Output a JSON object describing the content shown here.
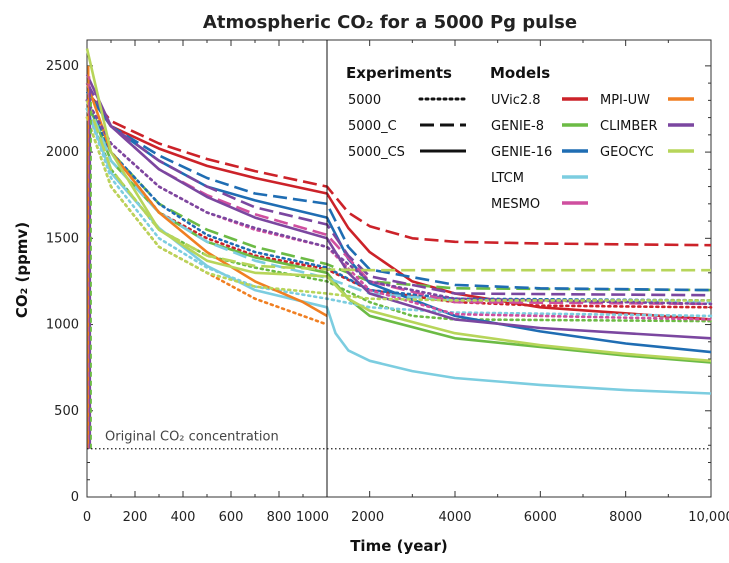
{
  "chart_data": {
    "type": "line",
    "title": "Atmospheric CO₂ for a 5000 Pg pulse",
    "xlabel": "Time (year)",
    "ylabel": "CO₂ (ppmv)",
    "ylim": [
      0,
      2650
    ],
    "x_axis_note": "piecewise linear: 0-1000 years left panel, 1000-10,000 years right panel",
    "x_ticks": [
      {
        "value": 0,
        "label": "0"
      },
      {
        "value": 200,
        "label": "200"
      },
      {
        "value": 400,
        "label": "400"
      },
      {
        "value": 600,
        "label": "600"
      },
      {
        "value": 800,
        "label": "800"
      },
      {
        "value": 1000,
        "label": "1000"
      },
      {
        "value": 2000,
        "label": "2000"
      },
      {
        "value": 4000,
        "label": "4000"
      },
      {
        "value": 6000,
        "label": "6000"
      },
      {
        "value": 8000,
        "label": "8000"
      },
      {
        "value": 10000,
        "label": "10,000"
      }
    ],
    "y_ticks": [
      {
        "value": 0,
        "label": "0"
      },
      {
        "value": 500,
        "label": "500"
      },
      {
        "value": 1000,
        "label": "1000"
      },
      {
        "value": 1500,
        "label": "1500"
      },
      {
        "value": 2000,
        "label": "2000"
      },
      {
        "value": 2500,
        "label": "2500"
      }
    ],
    "baseline": {
      "label": "Original CO₂ concentration",
      "value": 280
    },
    "legend": {
      "experiments_title": "Experiments",
      "models_title": "Models",
      "experiments": [
        {
          "label": "5000",
          "style": "dotted"
        },
        {
          "label": "5000_C",
          "style": "dashed"
        },
        {
          "label": "5000_CS",
          "style": "solid"
        }
      ],
      "models": [
        {
          "label": "UVic2.8",
          "color": "#cc2229"
        },
        {
          "label": "GENIE-8",
          "color": "#6cbb45"
        },
        {
          "label": "GENIE-16",
          "color": "#1f6db3"
        },
        {
          "label": "LTCM",
          "color": "#7ccde0"
        },
        {
          "label": "MESMO",
          "color": "#cf4f9f"
        },
        {
          "label": "MPI-UW",
          "color": "#f07f22"
        },
        {
          "label": "CLIMBER",
          "color": "#7b47a0"
        },
        {
          "label": "GEOCYC",
          "color": "#b7d55a"
        }
      ]
    },
    "series": [
      {
        "name": "UVic2.8",
        "experiment": "5000",
        "color": "#cc2229",
        "style": "dotted",
        "points": [
          [
            0,
            2300
          ],
          [
            100,
            2000
          ],
          [
            300,
            1650
          ],
          [
            500,
            1500
          ],
          [
            700,
            1400
          ],
          [
            1000,
            1320
          ],
          [
            2000,
            1200
          ],
          [
            4000,
            1130
          ],
          [
            6000,
            1110
          ],
          [
            10000,
            1100
          ]
        ]
      },
      {
        "name": "UVic2.8",
        "experiment": "5000_C",
        "color": "#cc2229",
        "style": "dashed",
        "points": [
          [
            0,
            2350
          ],
          [
            100,
            2180
          ],
          [
            300,
            2050
          ],
          [
            500,
            1960
          ],
          [
            700,
            1890
          ],
          [
            1000,
            1800
          ],
          [
            1500,
            1650
          ],
          [
            2000,
            1570
          ],
          [
            3000,
            1500
          ],
          [
            4000,
            1480
          ],
          [
            6000,
            1470
          ],
          [
            10000,
            1460
          ]
        ]
      },
      {
        "name": "UVic2.8",
        "experiment": "5000_CS",
        "color": "#cc2229",
        "style": "solid",
        "points": [
          [
            0,
            2350
          ],
          [
            100,
            2150
          ],
          [
            300,
            2020
          ],
          [
            500,
            1920
          ],
          [
            700,
            1850
          ],
          [
            1000,
            1760
          ],
          [
            1500,
            1560
          ],
          [
            2000,
            1420
          ],
          [
            3000,
            1250
          ],
          [
            4000,
            1180
          ],
          [
            6000,
            1100
          ],
          [
            10000,
            1030
          ]
        ]
      },
      {
        "name": "GENIE-8",
        "experiment": "5000",
        "color": "#6cbb45",
        "style": "dotted",
        "points": [
          [
            0,
            2250
          ],
          [
            100,
            1900
          ],
          [
            300,
            1550
          ],
          [
            500,
            1400
          ],
          [
            700,
            1330
          ],
          [
            1000,
            1250
          ],
          [
            2000,
            1130
          ],
          [
            3000,
            1050
          ],
          [
            4000,
            1030
          ],
          [
            10000,
            1020
          ]
        ]
      },
      {
        "name": "GENIE-8",
        "experiment": "5000_C",
        "color": "#6cbb45",
        "style": "dashed",
        "points": [
          [
            0,
            2300
          ],
          [
            100,
            2000
          ],
          [
            300,
            1700
          ],
          [
            500,
            1550
          ],
          [
            700,
            1450
          ],
          [
            1000,
            1350
          ],
          [
            2000,
            1250
          ],
          [
            4000,
            1210
          ],
          [
            10000,
            1200
          ]
        ]
      },
      {
        "name": "GENIE-8",
        "experiment": "5000_CS",
        "color": "#6cbb45",
        "style": "solid",
        "points": [
          [
            0,
            2300
          ],
          [
            100,
            1950
          ],
          [
            300,
            1650
          ],
          [
            500,
            1480
          ],
          [
            700,
            1390
          ],
          [
            1000,
            1300
          ],
          [
            1500,
            1150
          ],
          [
            2000,
            1050
          ],
          [
            4000,
            920
          ],
          [
            6000,
            870
          ],
          [
            8000,
            820
          ],
          [
            10000,
            780
          ]
        ]
      },
      {
        "name": "GENIE-16",
        "experiment": "5000",
        "color": "#1f6db3",
        "style": "dotted",
        "points": [
          [
            0,
            2300
          ],
          [
            100,
            2000
          ],
          [
            300,
            1700
          ],
          [
            500,
            1520
          ],
          [
            700,
            1420
          ],
          [
            1000,
            1330
          ],
          [
            2000,
            1200
          ],
          [
            4000,
            1150
          ],
          [
            10000,
            1140
          ]
        ]
      },
      {
        "name": "GENIE-16",
        "experiment": "5000_C",
        "color": "#1f6db3",
        "style": "dashed",
        "points": [
          [
            0,
            2350
          ],
          [
            100,
            2150
          ],
          [
            300,
            1980
          ],
          [
            500,
            1850
          ],
          [
            700,
            1760
          ],
          [
            1000,
            1700
          ],
          [
            1500,
            1450
          ],
          [
            2000,
            1320
          ],
          [
            4000,
            1230
          ],
          [
            6000,
            1210
          ],
          [
            10000,
            1200
          ]
        ]
      },
      {
        "name": "GENIE-16",
        "experiment": "5000_CS",
        "color": "#1f6db3",
        "style": "solid",
        "points": [
          [
            0,
            2350
          ],
          [
            100,
            2150
          ],
          [
            300,
            1950
          ],
          [
            500,
            1800
          ],
          [
            700,
            1720
          ],
          [
            1000,
            1620
          ],
          [
            1500,
            1380
          ],
          [
            2000,
            1240
          ],
          [
            4000,
            1050
          ],
          [
            6000,
            960
          ],
          [
            8000,
            890
          ],
          [
            10000,
            840
          ]
        ]
      },
      {
        "name": "LTCM",
        "experiment": "5000",
        "color": "#7ccde0",
        "style": "dotted",
        "points": [
          [
            0,
            2250
          ],
          [
            100,
            1850
          ],
          [
            300,
            1500
          ],
          [
            500,
            1330
          ],
          [
            700,
            1220
          ],
          [
            1000,
            1150
          ],
          [
            2000,
            1100
          ],
          [
            4000,
            1070
          ],
          [
            10000,
            1050
          ]
        ]
      },
      {
        "name": "LTCM",
        "experiment": "5000_C",
        "color": "#7ccde0",
        "style": "dashed",
        "points": [
          [
            0,
            2300
          ],
          [
            100,
            1950
          ],
          [
            300,
            1650
          ],
          [
            500,
            1480
          ],
          [
            700,
            1370
          ],
          [
            1000,
            1270
          ],
          [
            2000,
            1180
          ],
          [
            4000,
            1140
          ],
          [
            10000,
            1130
          ]
        ]
      },
      {
        "name": "LTCM",
        "experiment": "5000_CS",
        "color": "#7ccde0",
        "style": "solid",
        "points": [
          [
            0,
            2250
          ],
          [
            100,
            1880
          ],
          [
            300,
            1560
          ],
          [
            500,
            1340
          ],
          [
            700,
            1200
          ],
          [
            1000,
            1100
          ],
          [
            1200,
            950
          ],
          [
            1500,
            850
          ],
          [
            2000,
            790
          ],
          [
            3000,
            730
          ],
          [
            4000,
            690
          ],
          [
            6000,
            650
          ],
          [
            8000,
            620
          ],
          [
            10000,
            600
          ]
        ]
      },
      {
        "name": "MESMO",
        "experiment": "5000",
        "color": "#cf4f9f",
        "style": "dotted",
        "points": [
          [
            0,
            2300
          ],
          [
            100,
            2050
          ],
          [
            300,
            1800
          ],
          [
            500,
            1650
          ],
          [
            700,
            1550
          ],
          [
            1000,
            1450
          ],
          [
            2000,
            1200
          ],
          [
            4000,
            1060
          ],
          [
            10000,
            1030
          ]
        ]
      },
      {
        "name": "MESMO",
        "experiment": "5000_C",
        "color": "#cf4f9f",
        "style": "dashed",
        "points": [
          [
            0,
            2400
          ],
          [
            100,
            2150
          ],
          [
            300,
            1900
          ],
          [
            500,
            1750
          ],
          [
            700,
            1640
          ],
          [
            1000,
            1520
          ],
          [
            2000,
            1250
          ],
          [
            4000,
            1130
          ],
          [
            10000,
            1120
          ]
        ]
      },
      {
        "name": "MPI-UW",
        "experiment": "5000",
        "color": "#f07f22",
        "style": "dotted",
        "points": [
          [
            0,
            2200
          ],
          [
            100,
            1800
          ],
          [
            300,
            1450
          ],
          [
            500,
            1300
          ],
          [
            700,
            1150
          ],
          [
            1000,
            1000
          ]
        ]
      },
      {
        "name": "MPI-UW",
        "experiment": "5000_CS",
        "color": "#f07f22",
        "style": "solid",
        "points": [
          [
            0,
            2400
          ],
          [
            100,
            2000
          ],
          [
            300,
            1650
          ],
          [
            500,
            1420
          ],
          [
            700,
            1250
          ],
          [
            900,
            1130
          ],
          [
            1000,
            1050
          ]
        ]
      },
      {
        "name": "CLIMBER",
        "experiment": "5000",
        "color": "#7b47a0",
        "style": "dotted",
        "points": [
          [
            0,
            2300
          ],
          [
            100,
            2050
          ],
          [
            300,
            1800
          ],
          [
            500,
            1650
          ],
          [
            700,
            1560
          ],
          [
            1000,
            1450
          ],
          [
            2000,
            1250
          ],
          [
            4000,
            1150
          ],
          [
            10000,
            1120
          ]
        ]
      },
      {
        "name": "CLIMBER",
        "experiment": "5000_C",
        "color": "#7b47a0",
        "style": "dashed",
        "points": [
          [
            0,
            2400
          ],
          [
            100,
            2150
          ],
          [
            300,
            1950
          ],
          [
            500,
            1800
          ],
          [
            700,
            1680
          ],
          [
            1000,
            1580
          ],
          [
            1500,
            1400
          ],
          [
            2000,
            1280
          ],
          [
            4000,
            1180
          ],
          [
            10000,
            1170
          ]
        ]
      },
      {
        "name": "CLIMBER",
        "experiment": "5000_CS",
        "color": "#7b47a0",
        "style": "solid",
        "points": [
          [
            0,
            2450
          ],
          [
            100,
            2150
          ],
          [
            300,
            1900
          ],
          [
            500,
            1740
          ],
          [
            700,
            1620
          ],
          [
            1000,
            1500
          ],
          [
            1500,
            1300
          ],
          [
            2000,
            1180
          ],
          [
            4000,
            1030
          ],
          [
            6000,
            980
          ],
          [
            8000,
            950
          ],
          [
            10000,
            920
          ]
        ]
      },
      {
        "name": "GEOCYC",
        "experiment": "5000",
        "color": "#b7d55a",
        "style": "dotted",
        "points": [
          [
            0,
            2200
          ],
          [
            100,
            1800
          ],
          [
            300,
            1450
          ],
          [
            500,
            1300
          ],
          [
            700,
            1220
          ],
          [
            1000,
            1180
          ],
          [
            2000,
            1150
          ],
          [
            4000,
            1140
          ],
          [
            10000,
            1140
          ]
        ]
      },
      {
        "name": "GEOCYC",
        "experiment": "5000_C",
        "color": "#b7d55a",
        "style": "dashed",
        "points": [
          [
            0,
            2300
          ],
          [
            100,
            1900
          ],
          [
            300,
            1550
          ],
          [
            500,
            1400
          ],
          [
            700,
            1340
          ],
          [
            1000,
            1320
          ],
          [
            2000,
            1315
          ],
          [
            4000,
            1315
          ],
          [
            10000,
            1315
          ]
        ]
      },
      {
        "name": "GEOCYC",
        "experiment": "5000_CS",
        "color": "#b7d55a",
        "style": "solid",
        "points": [
          [
            0,
            2600
          ],
          [
            100,
            2000
          ],
          [
            300,
            1550
          ],
          [
            500,
            1370
          ],
          [
            700,
            1300
          ],
          [
            1000,
            1280
          ],
          [
            1500,
            1150
          ],
          [
            2000,
            1080
          ],
          [
            4000,
            950
          ],
          [
            6000,
            880
          ],
          [
            8000,
            830
          ],
          [
            10000,
            790
          ]
        ]
      }
    ]
  }
}
